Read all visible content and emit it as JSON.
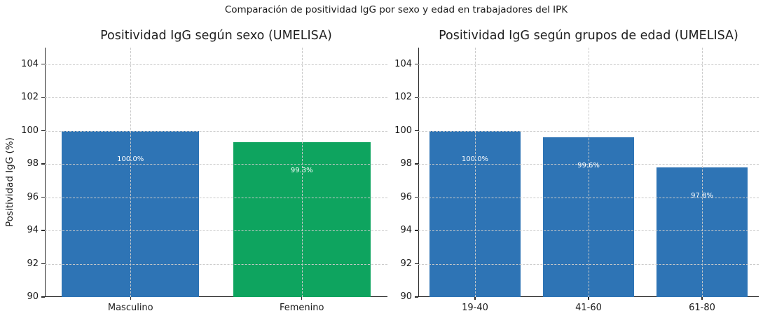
{
  "figure": {
    "suptitle": "Comparación de positividad IgG por sexo y edad en trabajadores del IPK",
    "ylabel": "Positividad IgG (%)",
    "colors": {
      "bar_blue": "#2e74b5",
      "bar_green": "#0ea45f",
      "spine": "#2b2b2b",
      "grid": "#c9c9c9",
      "text": "#1a1a1a",
      "bar_label_text": "#ffffff",
      "background": "#ffffff"
    }
  },
  "chart_data": [
    {
      "type": "bar",
      "title": "Positividad IgG según sexo (UMELISA)",
      "categories": [
        "Masculino",
        "Femenino"
      ],
      "values": [
        100.0,
        99.3
      ],
      "value_labels": [
        "100.0%",
        "99.3%"
      ],
      "bar_colors": [
        "#2e74b5",
        "#0ea45f"
      ],
      "ylabel": "Positividad IgG (%)",
      "xlabel": "",
      "ylim": [
        90,
        105
      ],
      "yticks": [
        90,
        92,
        94,
        96,
        98,
        100,
        102,
        104
      ],
      "grid": true,
      "legend": false
    },
    {
      "type": "bar",
      "title": "Positividad IgG según grupos de edad (UMELISA)",
      "categories": [
        "19-40",
        "41-60",
        "61-80"
      ],
      "values": [
        100.0,
        99.6,
        97.8
      ],
      "value_labels": [
        "100.0%",
        "99.6%",
        "97.8%"
      ],
      "bar_colors": [
        "#2e74b5",
        "#2e74b5",
        "#2e74b5"
      ],
      "ylabel": "",
      "xlabel": "",
      "ylim": [
        90,
        105
      ],
      "yticks": [
        90,
        92,
        94,
        96,
        98,
        100,
        102,
        104
      ],
      "grid": true,
      "legend": false
    }
  ]
}
